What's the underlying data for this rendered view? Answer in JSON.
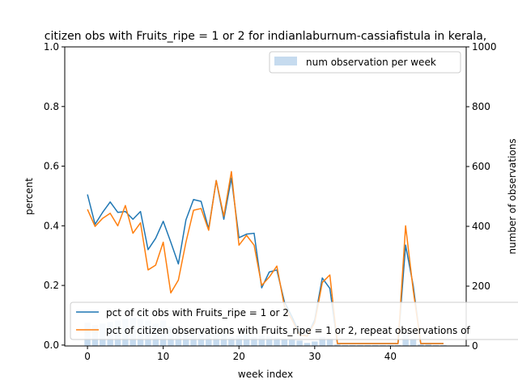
{
  "chart_data": {
    "type": "line",
    "title": "citizen obs with Fruits_ripe = 1 or 2 for indianlaburnum-cassiafistula in kerala, ",
    "xlabel": "week index",
    "ylabel": "percent",
    "y2label": "number of observations",
    "xlim": [
      -3,
      50
    ],
    "ylim": [
      -0.003,
      1.0
    ],
    "y2lim": [
      0,
      1000
    ],
    "x_ticks": [
      0,
      10,
      20,
      30,
      40
    ],
    "y_ticks": [
      0.0,
      0.2,
      0.4,
      0.6,
      0.8,
      1.0
    ],
    "y_tick_labels": [
      "0.0",
      "0.2",
      "0.4",
      "0.6",
      "0.8",
      "1.0"
    ],
    "y2_ticks": [
      0,
      200,
      400,
      600,
      800,
      1000
    ],
    "grid": false,
    "legend_upper": "top-right",
    "legend_lower": "bottom-left",
    "series": [
      {
        "name": "pct of cit obs with Fruits_ripe = 1 or 2",
        "color": "#1f77b4",
        "axis": "left",
        "x": [
          0,
          1,
          2,
          3,
          4,
          5,
          6,
          7,
          8,
          9,
          10,
          11,
          12,
          13,
          14,
          15,
          16,
          17,
          18,
          19,
          20,
          21,
          22,
          23,
          24,
          25,
          26,
          27,
          28,
          29,
          30,
          31,
          32,
          33,
          34,
          35,
          36,
          37,
          38,
          39,
          40,
          41,
          42,
          43,
          44,
          45,
          46,
          47
        ],
        "values": [
          0.505,
          0.405,
          0.445,
          0.48,
          0.445,
          0.448,
          0.422,
          0.448,
          0.32,
          0.358,
          0.415,
          0.345,
          0.272,
          0.42,
          0.488,
          0.482,
          0.39,
          0.552,
          0.422,
          0.56,
          0.36,
          0.372,
          0.375,
          0.192,
          0.245,
          0.252,
          0.145,
          0.095,
          0.04,
          0.03,
          0.085,
          0.225,
          0.19,
          0.005,
          0.005,
          0.005,
          0.005,
          0.005,
          0.005,
          0.005,
          0.005,
          0.005,
          0.335,
          0.2,
          0.005,
          0.005,
          0.005,
          0.005
        ]
      },
      {
        "name": "pct of citizen observations with Fruits_ripe = 1 or 2, repeat observations of",
        "color": "#ff7f0e",
        "axis": "left",
        "x": [
          0,
          1,
          2,
          3,
          4,
          5,
          6,
          7,
          8,
          9,
          10,
          11,
          12,
          13,
          14,
          15,
          16,
          17,
          18,
          19,
          20,
          21,
          22,
          23,
          24,
          25,
          26,
          27,
          28,
          29,
          30,
          31,
          32,
          33,
          34,
          35,
          36,
          37,
          38,
          39,
          40,
          41,
          42,
          43,
          44,
          45,
          46,
          47
        ],
        "values": [
          0.455,
          0.398,
          0.425,
          0.442,
          0.4,
          0.468,
          0.375,
          0.41,
          0.252,
          0.268,
          0.345,
          0.175,
          0.218,
          0.345,
          0.452,
          0.458,
          0.385,
          0.552,
          0.432,
          0.582,
          0.335,
          0.368,
          0.335,
          0.2,
          0.228,
          0.265,
          0.13,
          0.085,
          0.035,
          0.03,
          0.075,
          0.21,
          0.235,
          0.005,
          0.005,
          0.005,
          0.005,
          0.005,
          0.005,
          0.005,
          0.005,
          0.005,
          0.4,
          0.185,
          0.005,
          0.005,
          0.005,
          0.005
        ]
      },
      {
        "name": "num observation per week",
        "type": "bar",
        "color": "#c6dbef",
        "axis": "right",
        "x": [
          0,
          1,
          2,
          3,
          4,
          5,
          6,
          7,
          8,
          9,
          10,
          11,
          12,
          13,
          14,
          15,
          16,
          17,
          18,
          19,
          20,
          21,
          22,
          23,
          24,
          25,
          26,
          27,
          28,
          29,
          30,
          31,
          32,
          33,
          34,
          35,
          36,
          37,
          38,
          39,
          40,
          41,
          42,
          43,
          44,
          45,
          46,
          47
        ],
        "values": [
          78,
          70,
          75,
          80,
          85,
          90,
          95,
          90,
          85,
          75,
          85,
          65,
          55,
          50,
          48,
          52,
          45,
          42,
          40,
          30,
          35,
          38,
          30,
          35,
          32,
          28,
          25,
          20,
          18,
          10,
          15,
          30,
          25,
          5,
          3,
          3,
          3,
          3,
          3,
          3,
          3,
          3,
          45,
          25,
          5,
          5,
          3,
          3
        ]
      }
    ]
  }
}
